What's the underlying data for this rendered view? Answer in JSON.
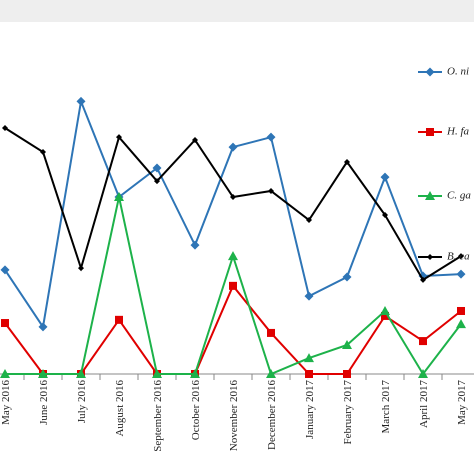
{
  "chart_data": {
    "type": "line",
    "categories": [
      "May 2016",
      "June 2016",
      "July 2016",
      "August 2016",
      "September 2016",
      "October 2016",
      "November 2016",
      "December 2016",
      "January 2017",
      "February 2017",
      "March 2017",
      "April 2017",
      "May 2017"
    ],
    "ylim": [
      0,
      100
    ],
    "series": [
      {
        "name": "O. ni",
        "color": "#2e75b6",
        "marker": "diamond",
        "values": [
          29.4,
          13.3,
          77.0,
          50.0,
          58.2,
          36.4,
          64.1,
          66.9,
          22.0,
          27.4,
          55.6,
          27.7,
          28.2
        ]
      },
      {
        "name": "H. fa",
        "color": "#e00000",
        "marker": "square",
        "values": [
          14.4,
          0,
          0,
          15.3,
          0,
          0,
          24.9,
          11.6,
          0,
          0,
          16.4,
          9.3,
          17.8
        ]
      },
      {
        "name": "C. ga",
        "color": "#1db24a",
        "marker": "triangle",
        "values": [
          0,
          0,
          0,
          50.0,
          0,
          0,
          33.3,
          0,
          4.5,
          8.2,
          17.8,
          0,
          14.1
        ]
      },
      {
        "name": "B. ca",
        "color": "#000000",
        "marker": "diamond-small",
        "values": [
          69.5,
          62.7,
          29.9,
          66.9,
          54.5,
          66.1,
          50.0,
          51.7,
          43.5,
          59.9,
          44.9,
          26.6,
          33.3
        ]
      }
    ]
  }
}
